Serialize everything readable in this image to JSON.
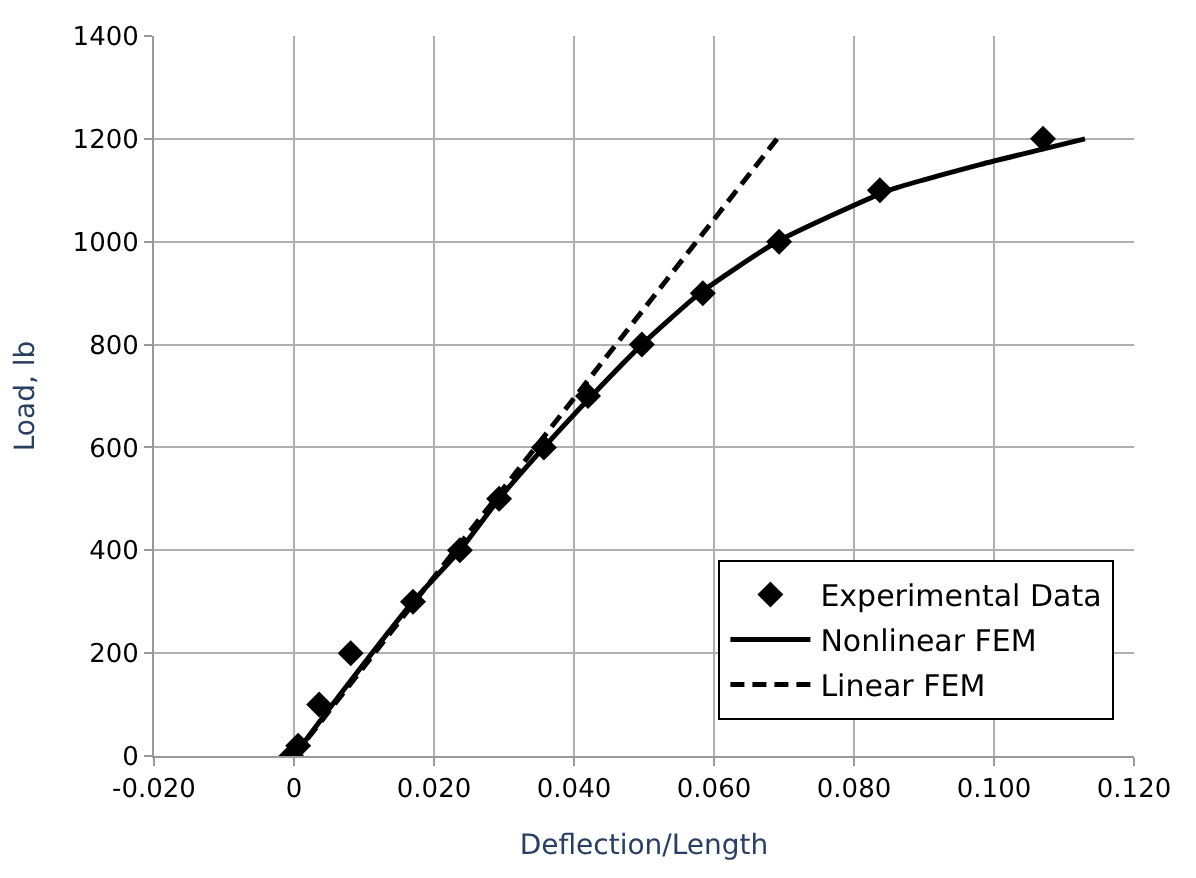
{
  "chart_data": {
    "type": "scatter",
    "xlabel": "Deflection/Length",
    "ylabel": "Load, lb",
    "xlim": [
      -0.02,
      0.12
    ],
    "xticks": [
      {
        "value": -0.02,
        "label": "-0.020"
      },
      0,
      {
        "value": 0.02,
        "label": "0.020"
      },
      {
        "value": 0.04,
        "label": "0.040"
      },
      {
        "value": 0.06,
        "label": "0.060"
      },
      {
        "value": 0.08,
        "label": "0.080"
      },
      {
        "value": 0.1,
        "label": "0.100"
      },
      {
        "value": 0.12,
        "label": "0.120"
      }
    ],
    "ylim": [
      0,
      1400
    ],
    "yticks": [
      0,
      200,
      400,
      600,
      800,
      1000,
      1200,
      1400
    ],
    "grid": true,
    "legend": "bottom right",
    "series": [
      {
        "name": "Experimental Data",
        "marker": "diamond",
        "color": "#000000",
        "x": [
          -0.0004,
          0.0006,
          0.0036,
          0.0081,
          0.017,
          0.0237,
          0.0293,
          0.0357,
          0.042,
          0.0497,
          0.0584,
          0.0693,
          0.0837,
          0.107
        ],
        "values": [
          0,
          20,
          100,
          200,
          300,
          400,
          500,
          600,
          700,
          800,
          900,
          1000,
          1100,
          1200
        ]
      },
      {
        "name": "Nonlinear FEM",
        "type": "line",
        "marker": "none",
        "line_style": "solid",
        "color": "#000000",
        "x": [
          0,
          0.0055,
          0.017,
          0.0237,
          0.0293,
          0.0357,
          0.0425,
          0.0497,
          0.058,
          0.069,
          0.085,
          0.098,
          0.113
        ],
        "values": [
          0,
          100,
          300,
          400,
          500,
          600,
          700,
          800,
          900,
          1000,
          1100,
          1150,
          1200
        ]
      },
      {
        "name": "Linear FEM",
        "type": "line",
        "marker": "none",
        "line_style": "dashed",
        "color": "#000000",
        "x": [
          0,
          0.069
        ],
        "values": [
          0,
          1200
        ]
      }
    ]
  }
}
